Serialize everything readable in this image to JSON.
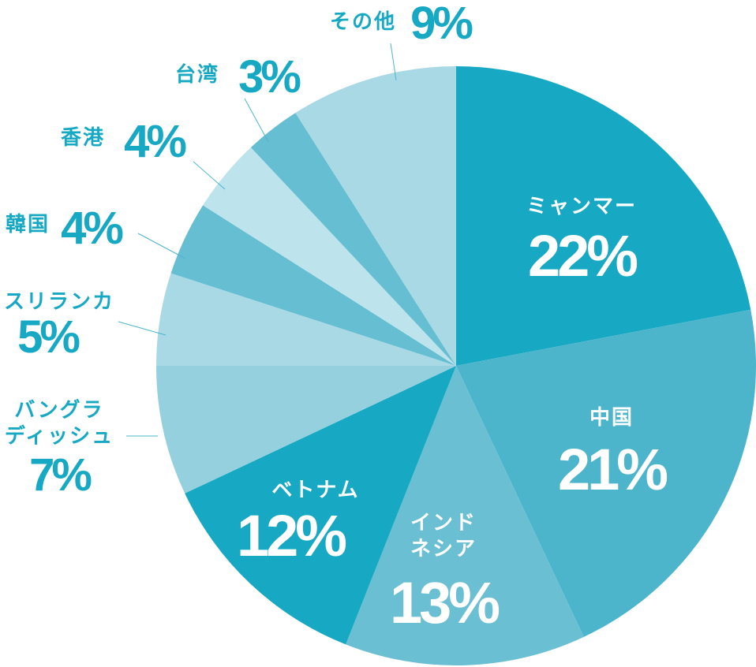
{
  "chart_data": {
    "type": "pie",
    "categories": [
      "ミャンマー",
      "中国",
      "インド\nネシア",
      "ベトナム",
      "バングラ\nディッシュ",
      "スリランカ",
      "韓国",
      "香港",
      "台湾",
      "その他"
    ],
    "values": [
      22,
      21,
      13,
      12,
      7,
      5,
      4,
      4,
      3,
      9
    ],
    "value_labels": [
      "22%",
      "21%",
      "13%",
      "12%",
      "7%",
      "5%",
      "4%",
      "4%",
      "3%",
      "9%"
    ],
    "colors": [
      "#17a9c4",
      "#4db5cb",
      "#6bbfd3",
      "#17a9c4",
      "#95d0de",
      "#a9d9e5",
      "#66bed2",
      "#bde3ec",
      "#66bed2",
      "#a9d9e5"
    ]
  }
}
